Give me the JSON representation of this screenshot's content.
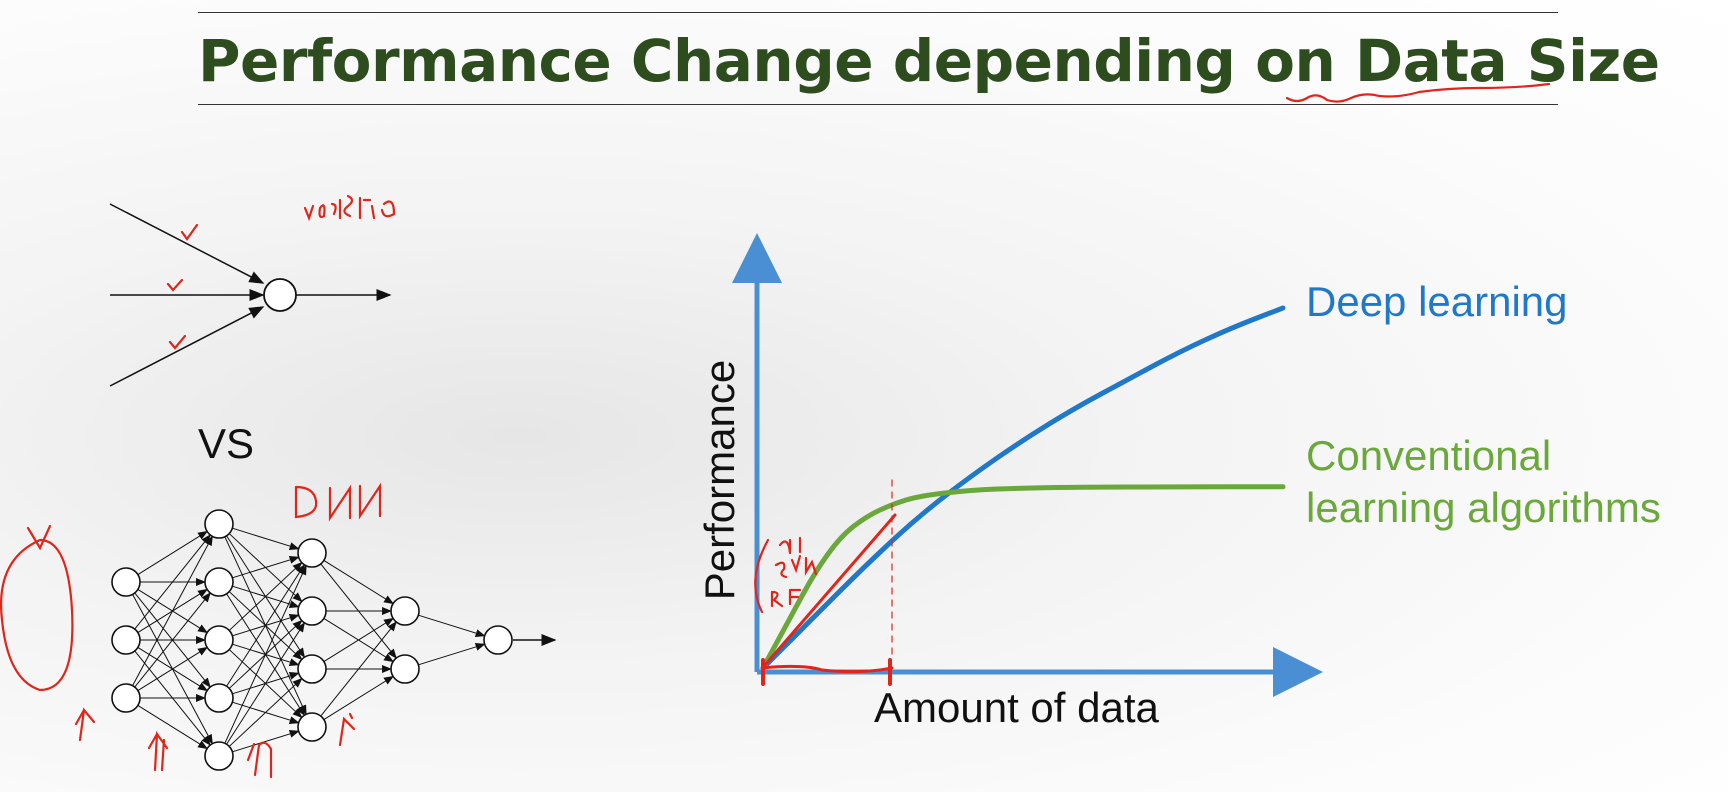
{
  "title": "Performance Change depending on Data Size",
  "left": {
    "vs_label": "VS",
    "single_neuron_layers": [
      3,
      1
    ],
    "dnn_layers": [
      3,
      5,
      4,
      2,
      1
    ]
  },
  "chart_data": {
    "type": "line",
    "xlabel": "Amount of data",
    "ylabel": "Performance",
    "series": [
      {
        "name": "Deep learning",
        "color": "#1f78c8",
        "x": [
          0,
          0.1,
          0.2,
          0.3,
          0.4,
          0.5,
          0.6,
          0.7,
          0.8,
          0.9,
          1.0
        ],
        "y": [
          0,
          0.13,
          0.26,
          0.38,
          0.48,
          0.57,
          0.65,
          0.72,
          0.79,
          0.85,
          0.9
        ]
      },
      {
        "name_lines": [
          "Conventional",
          "learning algorithms"
        ],
        "color": "#6aa83c",
        "x": [
          0,
          0.05,
          0.1,
          0.15,
          0.2,
          0.25,
          0.3,
          0.4,
          0.5,
          0.6,
          0.8,
          1.0
        ],
        "y": [
          0,
          0.12,
          0.24,
          0.33,
          0.38,
          0.41,
          0.43,
          0.445,
          0.45,
          0.452,
          0.453,
          0.453
        ]
      }
    ]
  },
  "colors": {
    "title": "#2e4d1f",
    "axis": "#4a8fd3",
    "annotation": "#e0251b"
  }
}
